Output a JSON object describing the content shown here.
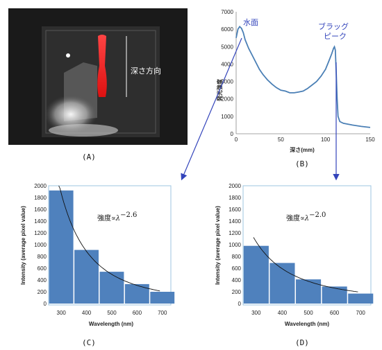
{
  "labels": {
    "a": "(A)",
    "b": "(B)",
    "c": "(C)",
    "d": "(D)"
  },
  "photo": {
    "annotation": "深さ方向"
  },
  "chart_data": [
    {
      "id": "B",
      "type": "line",
      "xlabel": "深さ(mm)",
      "ylabel": "発光強度",
      "xlim": [
        0,
        150
      ],
      "ylim": [
        0,
        7000
      ],
      "xticks": [
        0,
        50,
        100,
        150
      ],
      "yticks": [
        0,
        1000,
        2000,
        3000,
        4000,
        5000,
        6000,
        7000
      ],
      "annotations": [
        {
          "text": "水面",
          "x": 5,
          "y": 6150
        },
        {
          "text": "ブラッグ",
          "x": 110,
          "y": 4990
        },
        {
          "text": "ピーク",
          "x": 110,
          "y": 4990
        }
      ],
      "series": [
        {
          "x": [
            0,
            2,
            4,
            6,
            8,
            10,
            14,
            18,
            22,
            26,
            30,
            35,
            40,
            45,
            50,
            55,
            60,
            65,
            70,
            75,
            80,
            85,
            90,
            95,
            100,
            104,
            107,
            109,
            110,
            111,
            112,
            113,
            114,
            116,
            120,
            130,
            140,
            150
          ],
          "y": [
            5500,
            6000,
            6150,
            6050,
            5800,
            5400,
            4900,
            4500,
            4100,
            3700,
            3400,
            3100,
            2850,
            2650,
            2500,
            2450,
            2350,
            2350,
            2400,
            2450,
            2600,
            2800,
            3000,
            3300,
            3700,
            4200,
            4600,
            4900,
            4990,
            4800,
            3500,
            2000,
            1000,
            700,
            600,
            500,
            420,
            360
          ]
        }
      ]
    },
    {
      "id": "C",
      "type": "bar",
      "xlabel": "Wavelength (nm)",
      "ylabel": "Intensity (average pixel value)",
      "xlim": [
        250,
        750
      ],
      "ylim": [
        0,
        2000
      ],
      "xticks": [
        300,
        400,
        500,
        600,
        700
      ],
      "yticks": [
        0,
        200,
        400,
        600,
        800,
        1000,
        1200,
        1400,
        1600,
        1800,
        2000
      ],
      "formula_text": "強度∝",
      "formula_lambda": "λ",
      "formula_exp": "−2.6",
      "bar_centers": [
        300,
        400,
        500,
        600,
        700
      ],
      "values": [
        1920,
        910,
        540,
        330,
        200
      ],
      "fit": {
        "exponent": -2.6,
        "amplitude": 1870,
        "x_ref": 300,
        "x_start": 290,
        "x_end": 690
      }
    },
    {
      "id": "D",
      "type": "bar",
      "xlabel": "Wavelength (nm)",
      "ylabel": "Intensity (average pixel value)",
      "xlim": [
        250,
        750
      ],
      "ylim": [
        0,
        2000
      ],
      "xticks": [
        300,
        400,
        500,
        600,
        700
      ],
      "yticks": [
        0,
        200,
        400,
        600,
        800,
        1000,
        1200,
        1400,
        1600,
        1800,
        2000
      ],
      "formula_text": "強度∝",
      "formula_lambda": "λ",
      "formula_exp": "−2.0",
      "bar_centers": [
        300,
        400,
        500,
        600,
        700
      ],
      "values": [
        980,
        690,
        410,
        290,
        170
      ],
      "fit": {
        "exponent": -2.0,
        "amplitude": 1050,
        "x_ref": 300,
        "x_start": 290,
        "x_end": 690
      }
    }
  ]
}
